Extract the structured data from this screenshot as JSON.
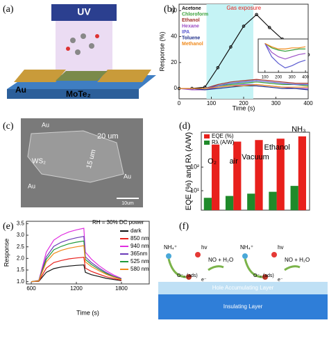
{
  "figure": {
    "panel_labels": [
      "(a)",
      "(b)",
      "(c)",
      "(d)",
      "(e)",
      "(f)"
    ],
    "a": {
      "beam": "UV",
      "electrode": "Au",
      "channel": "MoTe₂"
    },
    "c": {
      "labels": [
        "Au",
        "20 um",
        "15 um",
        "WS₂",
        "Au",
        "Au"
      ],
      "scale_bar": "10um"
    },
    "f": {
      "groups": [
        {
          "ion": "NH₄⁺",
          "photon": "hv",
          "product": "NO + H₂O",
          "adsorbate": "O⁻₂ (ads)",
          "electron": "e⁻"
        },
        {
          "ion": "NH₄⁺",
          "photon": "hv",
          "product": "NO + H₂O",
          "adsorbate": "O⁻₂ (ads)",
          "electron": "e⁻"
        }
      ],
      "layers": [
        "Hole Accumulating Layer",
        "Insulating Layer"
      ]
    }
  },
  "chart_data": [
    {
      "type": "line",
      "x_label": "Time (s)",
      "y_label": "Response (%)",
      "legend": "top-left",
      "highlight": {
        "label": "Gas exposure",
        "x": [
          85,
          230
        ]
      },
      "x": [
        0,
        40,
        80,
        120,
        160,
        200,
        240,
        280,
        320,
        360,
        400
      ],
      "series": [
        {
          "name": "Acetone",
          "color": "#111111",
          "markers": true,
          "values": [
            0,
            0,
            1,
            16,
            32,
            48,
            57,
            47,
            38,
            31,
            26
          ]
        },
        {
          "name": "Chloroform",
          "color": "#3aa03a",
          "values": [
            0,
            0,
            0,
            2,
            3,
            4,
            5,
            4,
            3,
            3,
            2
          ]
        },
        {
          "name": "Ethanol",
          "color": "#a0302a",
          "values": [
            0,
            0,
            0,
            3,
            5,
            6,
            7,
            6,
            5,
            4,
            4
          ]
        },
        {
          "name": "Hexane",
          "color": "#9b4fc4",
          "values": [
            0,
            -1,
            -1,
            1,
            2,
            3,
            3,
            2,
            1,
            0,
            0
          ]
        },
        {
          "name": "IPA",
          "color": "#5a5ad0",
          "values": [
            0,
            0,
            0,
            2,
            4,
            5,
            6,
            5,
            4,
            3,
            3
          ]
        },
        {
          "name": "Toluene",
          "color": "#1f2f8a",
          "values": [
            0,
            0,
            -1,
            0,
            1,
            2,
            2,
            1,
            0,
            0,
            -1
          ]
        },
        {
          "name": "Methanol",
          "color": "#f08a1c",
          "values": [
            0,
            0,
            0,
            1,
            2,
            2,
            3,
            2,
            1,
            1,
            1
          ]
        }
      ],
      "xlim": [
        0,
        400
      ],
      "ylim": [
        -8,
        65
      ],
      "xticks": [
        0,
        100,
        200,
        300,
        400
      ],
      "yticks": [
        0,
        20,
        40,
        60
      ]
    },
    {
      "type": "line",
      "x": [
        100,
        150,
        200,
        250,
        300,
        350,
        400
      ],
      "series": [
        {
          "color": "#3aa03a",
          "values": [
            0,
            -4,
            -6,
            -7,
            -6,
            -5,
            -5
          ]
        },
        {
          "color": "#9b4fc4",
          "values": [
            0,
            -8,
            -12,
            -14,
            -12,
            -10,
            -9
          ]
        },
        {
          "color": "#5a5ad0",
          "values": [
            0,
            -12,
            -18,
            -22,
            -20,
            -17,
            -15
          ]
        },
        {
          "color": "#f08a1c",
          "values": [
            0,
            -3,
            -5,
            -5,
            -4,
            -4,
            -3
          ]
        }
      ],
      "xlim": [
        50,
        420
      ],
      "ylim": [
        -26,
        4
      ],
      "xticks": [
        100,
        200,
        300,
        400
      ]
    },
    {
      "type": "bar",
      "y_label": "EQE (%) and Rλ (A/W)",
      "legend": "top-left",
      "log_y": true,
      "categories": [
        "O₂",
        "air",
        "Vacuum",
        "Ethanol",
        "NH₃"
      ],
      "series": [
        {
          "name": "EQE (%)",
          "color": "#e8201c",
          "values": [
            900,
            1200,
            1400,
            1600,
            2000
          ]
        },
        {
          "name": "Rλ (A/W)",
          "color": "#1f8a2a",
          "values": [
            5,
            6,
            7.5,
            9,
            16
          ]
        }
      ],
      "ylim": [
        1.5,
        3000
      ],
      "yticks": [
        {
          "value": 10,
          "label": "10¹"
        },
        {
          "value": 100,
          "label": "10²"
        }
      ]
    },
    {
      "type": "line",
      "x_label": "Time (s)",
      "y_label": "Response",
      "legend": "outside-right",
      "annotation": "RH = 30%  DC power",
      "x": [
        600,
        700,
        800,
        900,
        1000,
        1100,
        1200,
        1300,
        1320,
        1400,
        1500,
        1600,
        1700,
        1800
      ],
      "series": [
        {
          "name": "dark",
          "color": "#111111",
          "values": [
            1.0,
            1.01,
            1.4,
            1.56,
            1.63,
            1.67,
            1.7,
            1.72,
            1.4,
            1.3,
            1.22,
            1.14,
            1.09,
            1.04
          ]
        },
        {
          "name": "850 nm",
          "color": "#e8201c",
          "values": [
            1.0,
            1.02,
            1.58,
            1.82,
            1.91,
            1.98,
            2.02,
            2.05,
            1.58,
            1.44,
            1.32,
            1.21,
            1.13,
            1.06
          ]
        },
        {
          "name": "940 nm",
          "color": "#e02ee0",
          "values": [
            1.0,
            1.05,
            2.27,
            2.79,
            3.0,
            3.14,
            3.23,
            3.3,
            2.27,
            1.97,
            1.69,
            1.46,
            1.28,
            1.14
          ]
        },
        {
          "name": "365nm",
          "color": "#6a3ab8",
          "values": [
            1.0,
            1.04,
            2.07,
            2.52,
            2.7,
            2.81,
            2.89,
            2.95,
            2.07,
            1.82,
            1.59,
            1.39,
            1.23,
            1.12
          ]
        },
        {
          "name": "525 nm",
          "color": "#1f9a3a",
          "values": [
            1.0,
            1.04,
            1.96,
            2.37,
            2.52,
            2.63,
            2.7,
            2.75,
            1.96,
            1.74,
            1.53,
            1.35,
            1.21,
            1.11
          ]
        },
        {
          "name": "580 nm",
          "color": "#f08a1c",
          "values": [
            1.0,
            1.03,
            1.85,
            2.21,
            2.35,
            2.44,
            2.5,
            2.55,
            1.85,
            1.65,
            1.47,
            1.31,
            1.19,
            1.09
          ]
        }
      ],
      "xlim": [
        535,
        2170
      ],
      "ylim": [
        0.9,
        3.6
      ],
      "xticks": [
        600,
        1200,
        1800
      ],
      "yticks": [
        {
          "value": 1,
          "label": "1.0"
        },
        1.5,
        {
          "value": 2,
          "label": "2.0"
        },
        2.5,
        {
          "value": 3,
          "label": "3.0"
        },
        3.5
      ]
    }
  ]
}
